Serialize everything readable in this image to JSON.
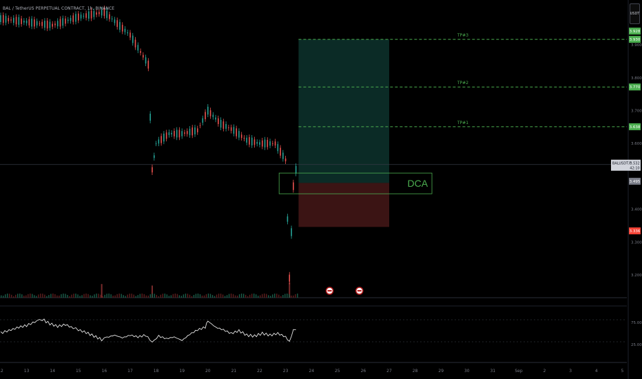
{
  "header": {
    "symbol_title": "BAL / TetherUS PERPETUAL CONTRACT, 1h, BINANCE",
    "currency_label": "USDT"
  },
  "chart_data": {
    "type": "candlestick",
    "symbol": "BALUSDT.P",
    "interval": "1h",
    "price_axis": {
      "min": 3.16,
      "max": 4.02,
      "ticks": [
        "3.900",
        "3.800",
        "3.700",
        "3.600",
        "3.400",
        "3.300",
        "3.200"
      ]
    },
    "x_axis": {
      "ticks": [
        "12",
        "13",
        "14",
        "15",
        "16",
        "17",
        "18",
        "19",
        "20",
        "21",
        "22",
        "23",
        "24",
        "25",
        "26",
        "27",
        "28",
        "29",
        "30",
        "31",
        "Sep",
        "2",
        "3",
        "4",
        "5"
      ]
    },
    "price_path": [
      [
        12,
        3.98
      ],
      [
        13,
        3.97
      ],
      [
        14,
        3.96
      ],
      [
        15,
        3.985
      ],
      [
        16,
        4.0
      ],
      [
        17,
        3.93
      ],
      [
        17.7,
        3.84
      ],
      [
        17.85,
        3.52
      ],
      [
        18,
        3.6
      ],
      [
        18.5,
        3.63
      ],
      [
        19,
        3.63
      ],
      [
        19.6,
        3.64
      ],
      [
        20,
        3.7
      ],
      [
        20.5,
        3.66
      ],
      [
        21,
        3.64
      ],
      [
        21.5,
        3.61
      ],
      [
        22,
        3.6
      ],
      [
        22.6,
        3.6
      ],
      [
        23,
        3.55
      ],
      [
        23.15,
        3.19
      ],
      [
        23.3,
        3.47
      ],
      [
        23.5,
        3.57
      ]
    ],
    "volume_spikes": [
      [
        15.9,
        0.9
      ],
      [
        17.85,
        0.8
      ],
      [
        23.15,
        1.0
      ]
    ],
    "levels": [
      {
        "name": "TP3",
        "label": "TP#3",
        "price": 3.917,
        "badge": "3.930",
        "badge2": "3.928",
        "color": "#4caf50"
      },
      {
        "name": "TP2",
        "label": "TP#2",
        "price": 3.772,
        "badge": "3.770",
        "color": "#4caf50"
      },
      {
        "name": "TP1",
        "label": "TP#1",
        "price": 3.651,
        "badge": "3.638",
        "color": "#4caf50"
      }
    ],
    "current_price": {
      "label": "BALUSDT.P",
      "value": "3.532",
      "countdown": "42:10",
      "price": 3.536
    },
    "entry_badge": {
      "value": "3.495",
      "price": 3.485
    },
    "stop_badge": {
      "value": "3.336",
      "price": 3.334
    },
    "position": {
      "x_start": 23.5,
      "x_end": 27.0,
      "entry": 3.48,
      "target": 3.917,
      "stop": 3.346,
      "profit_color": "#0b2b26",
      "loss_color": "#3b1414"
    },
    "dca_box": {
      "label": "DCA",
      "x_start": 22.75,
      "x_end": 28.65,
      "top": 3.51,
      "bottom": 3.447,
      "color": "#4caf50"
    },
    "event_markers": [
      24.7,
      25.85
    ],
    "rsi": {
      "levels": [
        "75.00",
        "25.00"
      ],
      "upper": 75,
      "lower": 25,
      "path": [
        [
          12,
          45
        ],
        [
          12.4,
          52
        ],
        [
          12.7,
          58
        ],
        [
          13,
          62
        ],
        [
          13.4,
          72
        ],
        [
          13.6,
          76
        ],
        [
          13.9,
          66
        ],
        [
          14.2,
          60
        ],
        [
          14.5,
          64
        ],
        [
          14.8,
          56
        ],
        [
          15,
          52
        ],
        [
          15.3,
          46
        ],
        [
          15.6,
          38
        ],
        [
          15.9,
          30
        ],
        [
          16.1,
          35
        ],
        [
          16.4,
          40
        ],
        [
          16.7,
          34
        ],
        [
          17,
          40
        ],
        [
          17.3,
          36
        ],
        [
          17.6,
          40
        ],
        [
          17.85,
          24
        ],
        [
          18.1,
          38
        ],
        [
          18.4,
          32
        ],
        [
          18.7,
          36
        ],
        [
          19,
          28
        ],
        [
          19.3,
          42
        ],
        [
          19.6,
          52
        ],
        [
          19.9,
          58
        ],
        [
          20,
          72
        ],
        [
          20.3,
          58
        ],
        [
          20.6,
          52
        ],
        [
          20.9,
          44
        ],
        [
          21.2,
          50
        ],
        [
          21.5,
          40
        ],
        [
          21.8,
          38
        ],
        [
          22.1,
          44
        ],
        [
          22.4,
          40
        ],
        [
          22.7,
          44
        ],
        [
          23,
          36
        ],
        [
          23.15,
          25
        ],
        [
          23.3,
          52
        ],
        [
          23.5,
          58
        ]
      ]
    }
  }
}
